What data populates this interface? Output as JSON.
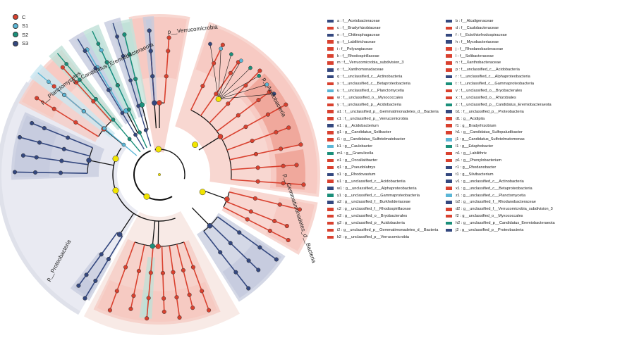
{
  "groups": [
    {
      "name": "C",
      "color": "#d9412f"
    },
    {
      "name": "S1",
      "color": "#5bb6d6"
    },
    {
      "name": "S2",
      "color": "#1a8f7a"
    },
    {
      "name": "S3",
      "color": "#34487f"
    }
  ],
  "phyla": [
    {
      "label": "p__Verrucomicrobia",
      "group": "C"
    },
    {
      "label": "p__Acidobacteria",
      "group": "C"
    },
    {
      "label": "p__Gemmatimonadetes_d__Bacteria",
      "group": "C"
    },
    {
      "label": "p__Proteobacteria",
      "group": "S3"
    },
    {
      "label": "p__Planctomycetes",
      "group": "S1"
    },
    {
      "label": "p__Candidatus_Eremiobacteraeota",
      "group": "S2"
    }
  ],
  "legend": [
    {
      "key": "a",
      "label": "f__Acetobacteraceae",
      "group": "S3"
    },
    {
      "key": "b",
      "label": "f__Alcaligenaceae",
      "group": "S3"
    },
    {
      "key": "c",
      "label": "f__Bradyrhizobiaceae",
      "group": "C"
    },
    {
      "key": "d",
      "label": "f__Caulobacteraceae",
      "group": "C"
    },
    {
      "key": "e",
      "label": "f__Chitinophagaceae",
      "group": "S3"
    },
    {
      "key": "f",
      "label": "f__Ectothiorhodospiraceae",
      "group": "S3"
    },
    {
      "key": "g",
      "label": "f__Labilitrichaceae",
      "group": "C"
    },
    {
      "key": "h",
      "label": "f__Mycobacteriaceae",
      "group": "S3"
    },
    {
      "key": "i",
      "label": "f__Polyangiaceae",
      "group": "C"
    },
    {
      "key": "j",
      "label": "f__Rhodanobacteraceae",
      "group": "C"
    },
    {
      "key": "k",
      "label": "f__Rhodospirillaceae",
      "group": "C"
    },
    {
      "key": "l",
      "label": "f__Solibacteraceae",
      "group": "C"
    },
    {
      "key": "m",
      "label": "f__Verrucomicrobia_subdivision_3",
      "group": "C"
    },
    {
      "key": "n",
      "label": "f__Xanthobacteraceae",
      "group": "C"
    },
    {
      "key": "o",
      "label": "f__Xanthomonadaceae",
      "group": "S3"
    },
    {
      "key": "p",
      "label": "f__unclassified_c__Acidobacteria",
      "group": "C"
    },
    {
      "key": "q",
      "label": "f__unclassified_c__Actinobacteria",
      "group": "S3"
    },
    {
      "key": "r",
      "label": "f__unclassified_c__Alphaproteobacteria",
      "group": "S3"
    },
    {
      "key": "s",
      "label": "f__unclassified_c__Betaproteobacteria",
      "group": "C"
    },
    {
      "key": "t",
      "label": "f__unclassified_c__Gammaproteobacteria",
      "group": "S2"
    },
    {
      "key": "u",
      "label": "f__unclassified_c__Planctomycetia",
      "group": "S1"
    },
    {
      "key": "v",
      "label": "f__unclassified_o__Bryobacterales",
      "group": "C"
    },
    {
      "key": "w",
      "label": "f__unclassified_o__Myxococcales",
      "group": "C"
    },
    {
      "key": "x",
      "label": "f__unclassified_o__Rhizobiales",
      "group": "C"
    },
    {
      "key": "y",
      "label": "f__unclassified_p__Acidobacteria",
      "group": "C"
    },
    {
      "key": "z",
      "label": "f__unclassified_p__Candidatus_Eremiobacteraeota",
      "group": "S2"
    },
    {
      "key": "a1",
      "label": "f__unclassified_p__Gemmatimonadetes_d__Bacteria",
      "group": "C"
    },
    {
      "key": "b1",
      "label": "f__unclassified_p__Proteobacteria",
      "group": "S3"
    },
    {
      "key": "c1",
      "label": "f__unclassified_p__Verrucomicrobia",
      "group": "C"
    },
    {
      "key": "d1",
      "label": "g__Acidipila",
      "group": "C"
    },
    {
      "key": "e1",
      "label": "g__Acidobacterium",
      "group": "S3"
    },
    {
      "key": "f1",
      "label": "g__Bradyrhizobium",
      "group": "C"
    },
    {
      "key": "g1",
      "label": "g__Candidatus_Solibacter",
      "group": "C"
    },
    {
      "key": "h1",
      "label": "g__Candidatus_Sulfopaludibacter",
      "group": "C"
    },
    {
      "key": "i1",
      "label": "g__Candidatus_Sulfotelmatobacter",
      "group": "C"
    },
    {
      "key": "j1",
      "label": "g__Candidatus_Sulfotelmatomonas",
      "group": "S1"
    },
    {
      "key": "k1",
      "label": "g__Caulobacter",
      "group": "S1"
    },
    {
      "key": "l1",
      "label": "g__Edaphobacter",
      "group": "S2"
    },
    {
      "key": "m1",
      "label": "g__Granulicella",
      "group": "S2"
    },
    {
      "key": "n1",
      "label": "g__Labilithrix",
      "group": "C"
    },
    {
      "key": "o1",
      "label": "g__Occallatibacter",
      "group": "C"
    },
    {
      "key": "p1",
      "label": "g__Phenylobacterium",
      "group": "C"
    },
    {
      "key": "q1",
      "label": "g__Pseudolabrys",
      "group": "C"
    },
    {
      "key": "r1",
      "label": "g__Rhodanobacter",
      "group": "S3"
    },
    {
      "key": "s1",
      "label": "g__Rhodovastum",
      "group": "S3"
    },
    {
      "key": "t1",
      "label": "g__Silvibacterium",
      "group": "S3"
    },
    {
      "key": "u1",
      "label": "g__unclassified_c__Acidobacteriia",
      "group": "C"
    },
    {
      "key": "v1",
      "label": "g__unclassified_c__Actinobacteria",
      "group": "S3"
    },
    {
      "key": "w1",
      "label": "g__unclassified_c__Alphaproteobacteria",
      "group": "S3"
    },
    {
      "key": "x1",
      "label": "g__unclassified_c__Betaproteobacteria",
      "group": "C"
    },
    {
      "key": "y1",
      "label": "g__unclassified_c__Gammaproteobacteria",
      "group": "S2"
    },
    {
      "key": "z1",
      "label": "g__unclassified_c__Planctomycetia",
      "group": "S1"
    },
    {
      "key": "a2",
      "label": "g__unclassified_f__Burkholderiaceae",
      "group": "S3"
    },
    {
      "key": "b2",
      "label": "g__unclassified_f__Rhodanobacteraceae",
      "group": "S3"
    },
    {
      "key": "c2",
      "label": "g__unclassified_f__Rhodospirillaceae",
      "group": "C"
    },
    {
      "key": "d2",
      "label": "g__unclassified_f__Verrucomicrobia_subdivision_3",
      "group": "C"
    },
    {
      "key": "e2",
      "label": "g__unclassified_o__Bryobacterales",
      "group": "C"
    },
    {
      "key": "f2",
      "label": "g__unclassified_o__Myxococcales",
      "group": "C"
    },
    {
      "key": "g2",
      "label": "g__unclassified_p__Acidobacteria",
      "group": "C"
    },
    {
      "key": "h2",
      "label": "g__unclassified_p__Candidatus_Eremiobacteraeota",
      "group": "S2"
    },
    {
      "key": "i2",
      "label": "g__unclassified_p__Gemmatimonadetes_d__Bacteria",
      "group": "C"
    },
    {
      "key": "j2",
      "label": "g__unclassified_p__Proteobacteria",
      "group": "S3"
    },
    {
      "key": "k2",
      "label": "g__unclassified_p__Verrucomicrobia",
      "group": "C"
    }
  ]
}
